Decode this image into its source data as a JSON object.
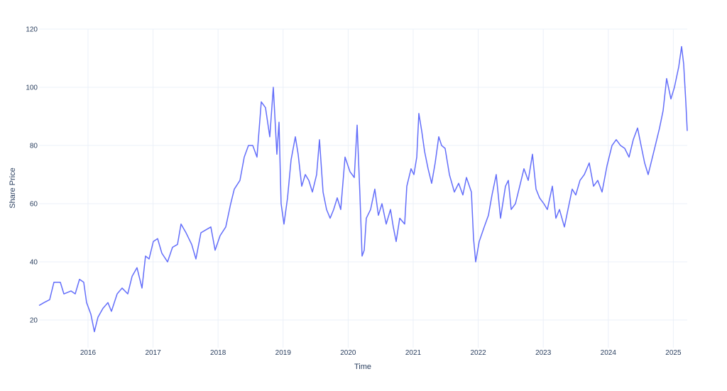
{
  "chart_data": {
    "type": "line",
    "x_label": "Time",
    "y_label": "Share Price",
    "color": "#636efa",
    "grid": true,
    "xlim": [
      2015.247,
      2025.214
    ],
    "xticks": [
      2016,
      2017,
      2018,
      2019,
      2020,
      2021,
      2022,
      2023,
      2024,
      2025
    ],
    "ylim": [
      10.5,
      120
    ],
    "yticks": [
      20,
      40,
      60,
      80,
      100,
      120
    ],
    "x": [
      2015.247,
      2015.323,
      2015.41,
      2015.476,
      2015.574,
      2015.629,
      2015.738,
      2015.803,
      2015.869,
      2015.934,
      2015.978,
      2016.044,
      2016.098,
      2016.153,
      2016.229,
      2016.306,
      2016.36,
      2016.448,
      2016.524,
      2016.611,
      2016.677,
      2016.753,
      2016.83,
      2016.884,
      2016.939,
      2017.004,
      2017.07,
      2017.135,
      2017.223,
      2017.299,
      2017.376,
      2017.43,
      2017.507,
      2017.594,
      2017.659,
      2017.736,
      2017.812,
      2017.889,
      2017.954,
      2018.031,
      2018.118,
      2018.194,
      2018.249,
      2018.336,
      2018.402,
      2018.467,
      2018.533,
      2018.598,
      2018.664,
      2018.729,
      2018.795,
      2018.849,
      2018.904,
      2018.937,
      2018.969,
      2019.013,
      2019.068,
      2019.122,
      2019.188,
      2019.231,
      2019.286,
      2019.341,
      2019.395,
      2019.45,
      2019.515,
      2019.559,
      2019.614,
      2019.668,
      2019.723,
      2019.777,
      2019.832,
      2019.886,
      2019.952,
      2020.028,
      2020.094,
      2020.138,
      2020.181,
      2020.214,
      2020.247,
      2020.279,
      2020.345,
      2020.41,
      2020.465,
      2020.52,
      2020.585,
      2020.651,
      2020.694,
      2020.738,
      2020.793,
      2020.869,
      2020.902,
      2020.967,
      2021.011,
      2021.055,
      2021.087,
      2021.131,
      2021.175,
      2021.229,
      2021.284,
      2021.338,
      2021.393,
      2021.437,
      2021.491,
      2021.557,
      2021.633,
      2021.699,
      2021.764,
      2021.819,
      2021.895,
      2021.928,
      2021.961,
      2022.015,
      2022.092,
      2022.157,
      2022.212,
      2022.277,
      2022.343,
      2022.419,
      2022.463,
      2022.507,
      2022.572,
      2022.638,
      2022.703,
      2022.769,
      2022.834,
      2022.889,
      2022.943,
      2023.009,
      2023.063,
      2023.14,
      2023.194,
      2023.249,
      2023.325,
      2023.38,
      2023.445,
      2023.5,
      2023.565,
      2023.631,
      2023.707,
      2023.773,
      2023.838,
      2023.904,
      2023.98,
      2024.057,
      2024.122,
      2024.188,
      2024.253,
      2024.319,
      2024.384,
      2024.45,
      2024.504,
      2024.559,
      2024.613,
      2024.668,
      2024.723,
      2024.788,
      2024.843,
      2024.897,
      2024.963,
      2025.017,
      2025.083,
      2025.127,
      2025.159,
      2025.192,
      2025.214
    ],
    "values": [
      25,
      26,
      27,
      33,
      33,
      29,
      30,
      29,
      34,
      33,
      26,
      22,
      16,
      21,
      24,
      26,
      23,
      29,
      31,
      29,
      35,
      38,
      31,
      42,
      41,
      47,
      48,
      43,
      40,
      45,
      46,
      53,
      50,
      46,
      41,
      50,
      51,
      52,
      44,
      49,
      52,
      60,
      65,
      68,
      76,
      80,
      80,
      76,
      95,
      93,
      83,
      100,
      77,
      88,
      60,
      53,
      62,
      75,
      83,
      77,
      66,
      70,
      68,
      64,
      70,
      82,
      64,
      58,
      55,
      58,
      62,
      58,
      76,
      71,
      69,
      87,
      63,
      42,
      44,
      55,
      58,
      65,
      56,
      60,
      53,
      58,
      52,
      47,
      55,
      53,
      66,
      72,
      70,
      76,
      91,
      85,
      78,
      72,
      67,
      74,
      83,
      80,
      79,
      70,
      64,
      67,
      63,
      69,
      64,
      48,
      40,
      47,
      52,
      56,
      63,
      70,
      55,
      66,
      68,
      58,
      60,
      66,
      72,
      68,
      77,
      65,
      62,
      60,
      58,
      66,
      55,
      58,
      52,
      58,
      65,
      63,
      68,
      70,
      74,
      66,
      68,
      64,
      73,
      80,
      82,
      80,
      79,
      76,
      82,
      86,
      80,
      74,
      70,
      75,
      80,
      86,
      92,
      103,
      96,
      100,
      107,
      114,
      108,
      95,
      85
    ]
  }
}
